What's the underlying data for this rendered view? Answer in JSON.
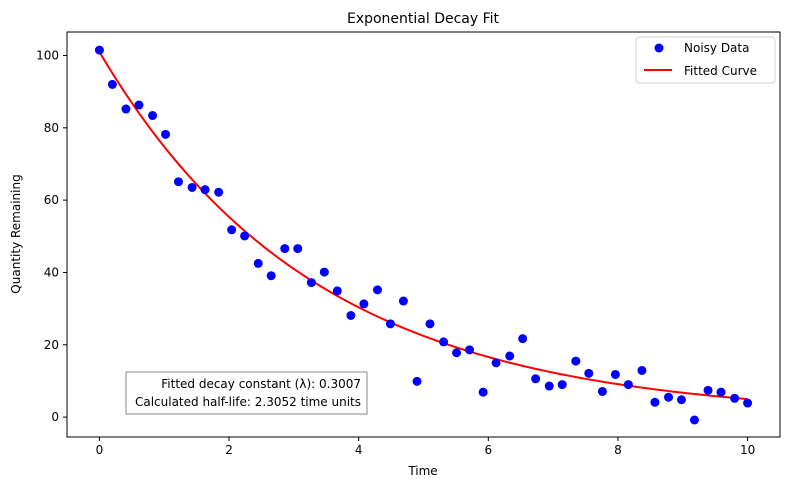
{
  "chart_data": {
    "type": "scatter",
    "title": "Exponential Decay Fit",
    "xlabel": "Time",
    "ylabel": "Quantity Remaining",
    "xlim": [
      -0.5,
      10.5
    ],
    "ylim": [
      -5.5,
      106.5
    ],
    "xticks": [
      0,
      2,
      4,
      6,
      8,
      10
    ],
    "yticks": [
      0,
      20,
      40,
      60,
      80,
      100
    ],
    "grid": false,
    "legend_position": "top-right",
    "series": [
      {
        "name": "Noisy Data",
        "kind": "scatter",
        "color": "#0000ff",
        "points": [
          [
            0.0,
            101.5
          ],
          [
            0.2,
            92.0
          ],
          [
            0.41,
            85.2
          ],
          [
            0.61,
            86.3
          ],
          [
            0.82,
            83.4
          ],
          [
            1.02,
            78.2
          ],
          [
            1.22,
            65.1
          ],
          [
            1.43,
            63.5
          ],
          [
            1.63,
            62.9
          ],
          [
            1.84,
            62.2
          ],
          [
            2.04,
            51.8
          ],
          [
            2.24,
            50.1
          ],
          [
            2.45,
            42.5
          ],
          [
            2.65,
            39.1
          ],
          [
            2.86,
            46.6
          ],
          [
            3.06,
            46.6
          ],
          [
            3.27,
            37.2
          ],
          [
            3.47,
            40.1
          ],
          [
            3.67,
            34.9
          ],
          [
            3.88,
            28.1
          ],
          [
            4.08,
            31.3
          ],
          [
            4.29,
            35.2
          ],
          [
            4.49,
            25.8
          ],
          [
            4.69,
            32.1
          ],
          [
            4.9,
            9.9
          ],
          [
            5.1,
            25.8
          ],
          [
            5.31,
            20.8
          ],
          [
            5.51,
            17.8
          ],
          [
            5.71,
            18.6
          ],
          [
            5.92,
            6.9
          ],
          [
            6.12,
            15.0
          ],
          [
            6.33,
            16.9
          ],
          [
            6.53,
            21.7
          ],
          [
            6.73,
            10.6
          ],
          [
            6.94,
            8.6
          ],
          [
            7.14,
            9.0
          ],
          [
            7.35,
            15.5
          ],
          [
            7.55,
            12.1
          ],
          [
            7.76,
            7.1
          ],
          [
            7.96,
            11.8
          ],
          [
            8.16,
            9.0
          ],
          [
            8.37,
            12.9
          ],
          [
            8.57,
            4.1
          ],
          [
            8.78,
            5.5
          ],
          [
            8.98,
            4.8
          ],
          [
            9.18,
            -0.8
          ],
          [
            9.39,
            7.4
          ],
          [
            9.59,
            6.9
          ],
          [
            9.8,
            5.2
          ],
          [
            10.0,
            3.9
          ]
        ]
      },
      {
        "name": "Fitted Curve",
        "kind": "line",
        "color": "#ff0000",
        "model": {
          "amplitude": 101.0,
          "decay_constant": 0.3007,
          "x_range": [
            0,
            10
          ]
        }
      }
    ],
    "annotation": {
      "line1": "Fitted decay constant (λ): 0.3007",
      "line2": "Calculated half-life: 2.3052 time units"
    }
  }
}
